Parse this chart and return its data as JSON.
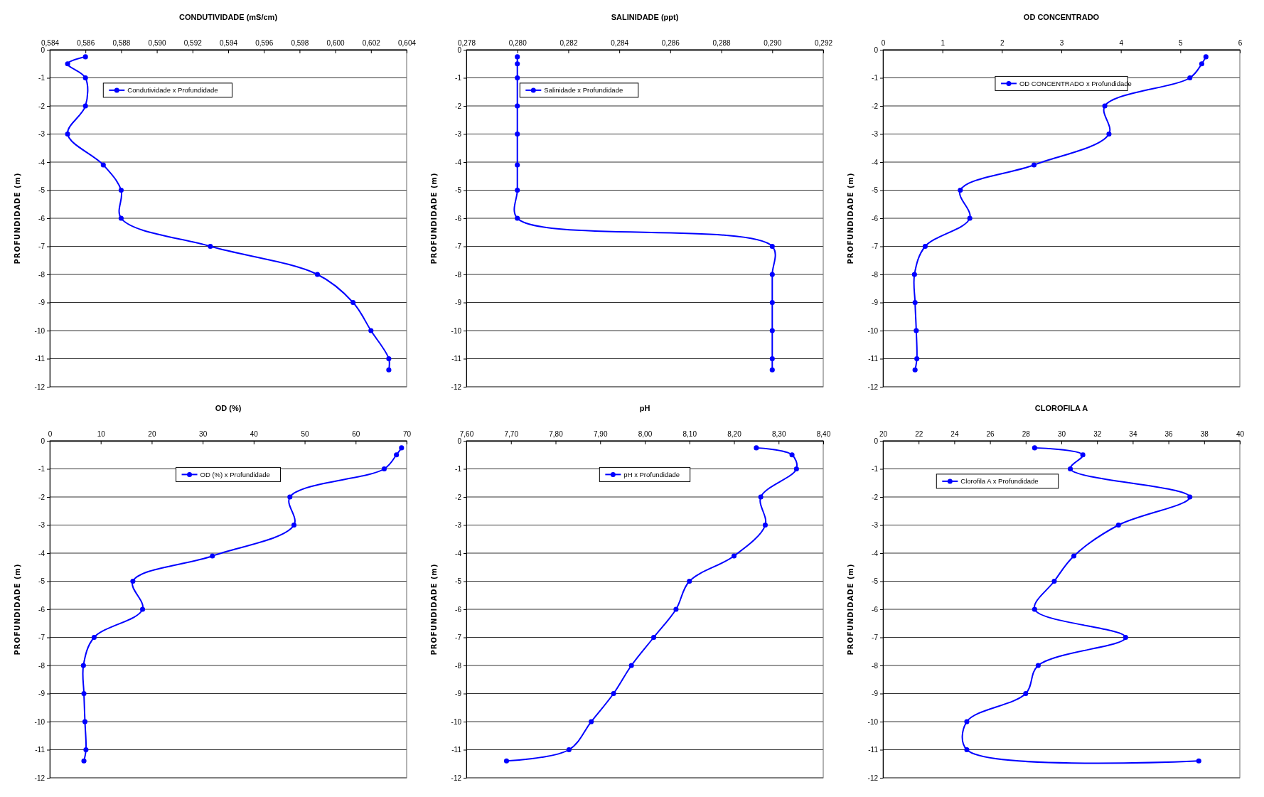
{
  "chart_data": [
    {
      "type": "line",
      "title": "CONDUTIVIDADE (mS/cm)",
      "ylabel": "PROFUNDIDADE (m)",
      "xlim": [
        0.584,
        0.604
      ],
      "xticks": [
        {
          "value": 0.584,
          "label": "0,584"
        },
        {
          "value": 0.586,
          "label": "0,586"
        },
        {
          "value": 0.588,
          "label": "0,588"
        },
        {
          "value": 0.59,
          "label": "0,590"
        },
        {
          "value": 0.592,
          "label": "0,592"
        },
        {
          "value": 0.594,
          "label": "0,594"
        },
        {
          "value": 0.596,
          "label": "0,596"
        },
        {
          "value": 0.598,
          "label": "0,598"
        },
        {
          "value": 0.6,
          "label": "0,600"
        },
        {
          "value": 0.602,
          "label": "0,602"
        },
        {
          "value": 0.604,
          "label": "0,604"
        }
      ],
      "ylim": [
        -12,
        0
      ],
      "yticks": [
        -12,
        -11,
        -10,
        -9,
        -8,
        -7,
        -6,
        -5,
        -4,
        -3,
        -2,
        -1,
        0
      ],
      "grid": "y",
      "legend": "top left",
      "marker": "circle",
      "line_style": "solid",
      "series": [
        {
          "name": "Condutividade x Profundidade",
          "color": "#0000ff",
          "x": [
            0.586,
            0.585,
            0.586,
            0.586,
            0.585,
            0.587,
            0.588,
            0.588,
            0.593,
            0.599,
            0.601,
            0.602,
            0.603,
            0.603
          ],
          "values": [
            -0.25,
            -0.5,
            -1,
            -2,
            -3,
            -4.1,
            -5,
            -6,
            -7,
            -8,
            -9,
            -10,
            -11,
            -11.4
          ]
        }
      ]
    },
    {
      "type": "line",
      "title": "SALINIDADE (ppt)",
      "ylabel": "PROFUNDIDADE (m)",
      "xlim": [
        0.278,
        0.292
      ],
      "xticks": [
        {
          "value": 0.278,
          "label": "0,278"
        },
        {
          "value": 0.28,
          "label": "0,280"
        },
        {
          "value": 0.282,
          "label": "0,282"
        },
        {
          "value": 0.284,
          "label": "0,284"
        },
        {
          "value": 0.286,
          "label": "0,286"
        },
        {
          "value": 0.288,
          "label": "0,288"
        },
        {
          "value": 0.29,
          "label": "0,290"
        },
        {
          "value": 0.292,
          "label": "0,292"
        }
      ],
      "ylim": [
        -12,
        0
      ],
      "yticks": [
        -12,
        -11,
        -10,
        -9,
        -8,
        -7,
        -6,
        -5,
        -4,
        -3,
        -2,
        -1,
        0
      ],
      "grid": "y",
      "legend": "top left",
      "marker": "circle",
      "line_style": "solid",
      "series": [
        {
          "name": "Salinidade x Profundidade",
          "color": "#0000ff",
          "x": [
            0.28,
            0.28,
            0.28,
            0.28,
            0.28,
            0.28,
            0.28,
            0.28,
            0.29,
            0.29,
            0.29,
            0.29,
            0.29,
            0.29
          ],
          "values": [
            -0.25,
            -0.5,
            -1,
            -2,
            -3,
            -4.1,
            -5,
            -6,
            -7,
            -8,
            -9,
            -10,
            -11,
            -11.4
          ]
        }
      ]
    },
    {
      "type": "line",
      "title": "OD CONCENTRADO",
      "ylabel": "PROFUNDIDADE (m)",
      "xlim": [
        0,
        6
      ],
      "xticks": [
        0,
        1,
        2,
        3,
        4,
        5,
        6
      ],
      "ylim": [
        -12,
        0
      ],
      "yticks": [
        -12,
        -11,
        -10,
        -9,
        -8,
        -7,
        -6,
        -5,
        -4,
        -3,
        -2,
        -1,
        0
      ],
      "grid": "y",
      "legend": "top",
      "marker": "circle",
      "line_style": "solid",
      "series": [
        {
          "name": "OD CONCENTRADO x Profundidade",
          "color": "#0000ff",
          "x": [
            5.43,
            5.36,
            5.16,
            3.73,
            3.8,
            2.54,
            1.3,
            1.46,
            0.71,
            0.53,
            0.54,
            0.56,
            0.57,
            0.54
          ],
          "values": [
            -0.25,
            -0.5,
            -1,
            -2,
            -3,
            -4.1,
            -5,
            -6,
            -7,
            -8,
            -9,
            -10,
            -11,
            -11.4
          ]
        }
      ]
    },
    {
      "type": "line",
      "title": "OD (%)",
      "ylabel": "PROFUNDIDADE (m)",
      "xlim": [
        0,
        70
      ],
      "xticks": [
        0,
        10,
        20,
        30,
        40,
        50,
        60,
        70
      ],
      "ylim": [
        -12,
        0
      ],
      "yticks": [
        -12,
        -11,
        -10,
        -9,
        -8,
        -7,
        -6,
        -5,
        -4,
        -3,
        -2,
        -1,
        0
      ],
      "grid": "y",
      "legend": "top",
      "marker": "circle",
      "line_style": "solid",
      "series": [
        {
          "name": "OD (%) x Profundidade",
          "color": "#0000ff",
          "x": [
            69.0,
            68.0,
            65.6,
            47.1,
            47.9,
            31.9,
            16.3,
            18.2,
            8.7,
            6.6,
            6.7,
            6.9,
            7.1,
            6.7
          ],
          "values": [
            -0.25,
            -0.5,
            -1,
            -2,
            -3,
            -4.1,
            -5,
            -6,
            -7,
            -8,
            -9,
            -10,
            -11,
            -11.4
          ]
        }
      ]
    },
    {
      "type": "line",
      "title": "pH",
      "ylabel": "PROFUNDIDADE (m)",
      "xlim": [
        7.6,
        8.4
      ],
      "xticks": [
        {
          "value": 7.6,
          "label": "7,60"
        },
        {
          "value": 7.7,
          "label": "7,70"
        },
        {
          "value": 7.8,
          "label": "7,80"
        },
        {
          "value": 7.9,
          "label": "7,90"
        },
        {
          "value": 8.0,
          "label": "8,00"
        },
        {
          "value": 8.1,
          "label": "8,10"
        },
        {
          "value": 8.2,
          "label": "8,20"
        },
        {
          "value": 8.3,
          "label": "8,30"
        },
        {
          "value": 8.4,
          "label": "8,40"
        }
      ],
      "ylim": [
        -12,
        0
      ],
      "yticks": [
        -12,
        -11,
        -10,
        -9,
        -8,
        -7,
        -6,
        -5,
        -4,
        -3,
        -2,
        -1,
        0
      ],
      "grid": "y",
      "legend": "top",
      "marker": "circle",
      "line_style": "solid",
      "series": [
        {
          "name": "pH x Profundidade",
          "color": "#0000ff",
          "x": [
            8.25,
            8.33,
            8.34,
            8.26,
            8.27,
            8.2,
            8.1,
            8.07,
            8.02,
            7.97,
            7.93,
            7.88,
            7.83,
            7.69
          ],
          "values": [
            -0.25,
            -0.5,
            -1,
            -2,
            -3,
            -4.1,
            -5,
            -6,
            -7,
            -8,
            -9,
            -10,
            -11,
            -11.4
          ]
        }
      ]
    },
    {
      "type": "line",
      "title": "CLOROFILA A",
      "ylabel": "PROFUNDIDADE (m)",
      "xlim": [
        20,
        40
      ],
      "xticks": [
        20,
        22,
        24,
        26,
        28,
        30,
        32,
        34,
        36,
        38,
        40
      ],
      "ylim": [
        -12,
        0
      ],
      "yticks": [
        -12,
        -11,
        -10,
        -9,
        -8,
        -7,
        -6,
        -5,
        -4,
        -3,
        -2,
        -1,
        0
      ],
      "grid": "y",
      "legend": "top left",
      "marker": "circle",
      "line_style": "solid",
      "series": [
        {
          "name": "Clorofila A x Profundidade",
          "color": "#0000ff",
          "x": [
            28.5,
            31.2,
            30.5,
            37.2,
            33.2,
            30.7,
            29.6,
            28.5,
            33.6,
            28.7,
            28.0,
            24.7,
            24.7,
            37.7
          ],
          "values": [
            -0.25,
            -0.5,
            -1,
            -2,
            -3,
            -4.1,
            -5,
            -6,
            -7,
            -8,
            -9,
            -10,
            -11,
            -11.4
          ]
        }
      ]
    }
  ]
}
